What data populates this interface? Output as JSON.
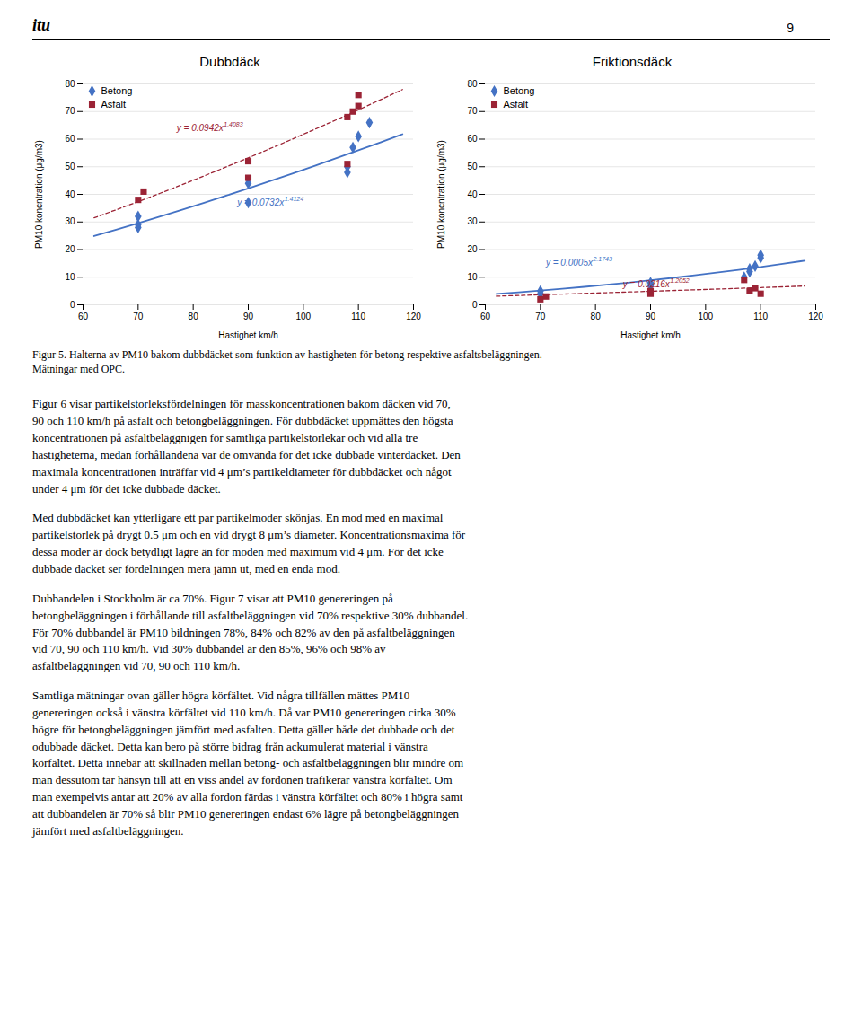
{
  "page": {
    "logo": "itu",
    "page_number": "9",
    "caption": "Figur 5. Halterna av PM10 bakom dubbdäcket som funktion av hastigheten för betong respektive asfaltsbeläggningen.\nMätningar med OPC.",
    "paragraphs": [
      "Figur 6 visar partikelstorleksfördelningen för masskoncentrationen bakom däcken vid 70,\n90 och 110 km/h på asfalt och betongbeläggningen. För dubbdäcket uppmättes den högsta\nkoncentrationen på asfaltbeläggnigen för samtliga partikelstorlekar och vid alla tre\nhastigheterna, medan förhållandena var de omvända för det icke dubbade vinterdäcket. Den\nmaximala koncentrationen inträffar vid 4 μm’s partikeldiameter för dubbdäcket och något\nunder 4 μm för det icke dubbade däcket.",
      "Med dubbdäcket kan ytterligare ett par partikelmoder skönjas. En mod med en maximal\npartikelstorlek på drygt 0.5 μm och en vid drygt 8 μm’s diameter. Koncentrationsmaxima för\ndessa moder är dock betydligt lägre än för moden med maximum vid 4 μm. För det icke\ndubbade däcket ser fördelningen mera jämn ut, med en enda mod.",
      "Dubbandelen i Stockholm är ca 70%. Figur 7 visar att PM10 genereringen på\nbetongbeläggningen i förhållande till asfaltbeläggningen vid 70% respektive 30% dubbandel.\nFör 70% dubbandel är PM10 bildningen 78%, 84% och 82% av den på asfaltbeläggningen\nvid 70, 90 och 110 km/h. Vid 30% dubbandel är den 85%, 96% och 98% av\nasfaltbeläggningen vid 70, 90 och 110 km/h.",
      "Samtliga mätningar ovan gäller högra körfältet. Vid några tillfällen mättes PM10\ngenereringen också i vänstra körfältet vid 110 km/h. Då var PM10 genereringen cirka 30%\nhögre för betongbeläggningen jämfört med asfalten. Detta gäller både det dubbade och det\nodubbade däcket. Detta kan bero på större bidrag från ackumulerat material i vänstra\nkörfältet. Detta innebär att skillnaden mellan betong- och asfaltbeläggningen blir mindre om\nman dessutom tar hänsyn till att en viss andel av fordonen trafikerar vänstra körfältet. Om\nman exempelvis antar att 20% av alla fordon färdas i vänstra körfältet och 80% i högra samt\natt dubbandelen är 70% så blir PM10 genereringen endast 6% lägre på betongbeläggningen\njämfört med asfaltbeläggningen."
    ]
  },
  "chart_data": [
    {
      "type": "scatter",
      "title": "Dubbdäck",
      "xlabel": "Hastighet km/h",
      "ylabel": "PM10 koncntration (μg/m3)",
      "xlim": [
        60,
        120
      ],
      "ylim": [
        0,
        80
      ],
      "xticks": [
        60,
        70,
        80,
        90,
        100,
        110,
        120
      ],
      "yticks": [
        0,
        10,
        20,
        30,
        40,
        50,
        60,
        70,
        80
      ],
      "grid": "y",
      "legend": "upper left",
      "series": [
        {
          "name": "Betong",
          "color": "#4472C4",
          "marker": "diamond",
          "x": [
            70,
            70,
            70,
            90,
            90,
            108,
            108,
            109,
            110,
            112
          ],
          "values": [
            28,
            29,
            32,
            37,
            44,
            48,
            50,
            57,
            61,
            66
          ]
        },
        {
          "name": "Asfalt",
          "color": "#9B2335",
          "marker": "square",
          "x": [
            70,
            71,
            90,
            90,
            108,
            108,
            109,
            110,
            110
          ],
          "values": [
            38,
            41,
            46,
            52,
            51,
            68,
            70,
            72,
            76
          ]
        }
      ],
      "trendlines": [
        {
          "color": "#4472C4",
          "line_style": "solid",
          "x": [
            62,
            66,
            70,
            74,
            78,
            82,
            86,
            90,
            94,
            98,
            102,
            106,
            110,
            114,
            118
          ],
          "values": [
            24.89,
            27.19,
            29.55,
            31.96,
            34.43,
            36.95,
            39.52,
            42.14,
            44.81,
            47.52,
            50.29,
            53.1,
            55.95,
            58.84,
            61.78
          ]
        },
        {
          "color": "#9B2335",
          "line_style": "dashed",
          "x": [
            62,
            66,
            70,
            74,
            78,
            82,
            86,
            90,
            94,
            98,
            102,
            106,
            110,
            114,
            118
          ],
          "values": [
            31.5,
            34.4,
            37.37,
            40.41,
            43.52,
            46.7,
            49.94,
            53.24,
            56.6,
            60.02,
            63.5,
            67.03,
            70.62,
            74.27,
            77.96
          ]
        }
      ],
      "annotations": [
        {
          "text": "y = 0.0732x",
          "exponent": "1.4124",
          "x": 88,
          "y": 36,
          "color": "#4472C4"
        },
        {
          "text": "y = 0.0942x",
          "exponent": "1.4083",
          "x": 77,
          "y": 63,
          "color": "#9B2335"
        }
      ]
    },
    {
      "type": "scatter",
      "title": "Friktionsdäck",
      "xlabel": "Hastighet km/h",
      "ylabel": "PM10 koncntration (μg/m3)",
      "xlim": [
        60,
        120
      ],
      "ylim": [
        0,
        80
      ],
      "xticks": [
        60,
        70,
        80,
        90,
        100,
        110,
        120
      ],
      "yticks": [
        0,
        10,
        20,
        30,
        40,
        50,
        60,
        70,
        80
      ],
      "grid": "y",
      "legend": "upper left",
      "series": [
        {
          "name": "Betong",
          "color": "#4472C4",
          "marker": "diamond",
          "x": [
            70,
            70,
            90,
            90,
            107,
            108,
            108,
            109,
            110,
            110
          ],
          "values": [
            4,
            5,
            7,
            8,
            10,
            12,
            13,
            14,
            17,
            18
          ]
        },
        {
          "name": "Asfalt",
          "color": "#9B2335",
          "marker": "square",
          "x": [
            70,
            71,
            90,
            90,
            107,
            108,
            109,
            110
          ],
          "values": [
            2,
            3,
            4,
            5,
            9,
            5,
            6,
            4
          ]
        }
      ],
      "trendlines": [
        {
          "color": "#4472C4",
          "line_style": "solid",
          "x": [
            62,
            66,
            70,
            74,
            78,
            82,
            86,
            90,
            94,
            98,
            102,
            106,
            110,
            114,
            118
          ],
          "values": [
            3.95,
            4.52,
            5.14,
            5.8,
            6.5,
            7.25,
            8.04,
            8.87,
            9.75,
            10.68,
            11.65,
            12.66,
            13.73,
            14.84,
            15.99
          ]
        },
        {
          "color": "#9B2335",
          "line_style": "dashed",
          "x": [
            62,
            66,
            70,
            74,
            78,
            82,
            86,
            90,
            94,
            98,
            102,
            106,
            110,
            114,
            118
          ],
          "values": [
            3.12,
            3.37,
            3.62,
            3.87,
            4.12,
            4.38,
            4.63,
            4.89,
            5.16,
            5.42,
            5.69,
            5.96,
            6.23,
            6.51,
            6.78
          ]
        }
      ],
      "annotations": [
        {
          "text": "y = 0.0005x",
          "exponent": "2.1743",
          "x": 71,
          "y": 14,
          "color": "#4472C4"
        },
        {
          "text": "y = 0.0216x",
          "exponent": "1.2052",
          "x": 85,
          "y": 6.5,
          "color": "#9B2335"
        }
      ]
    }
  ]
}
